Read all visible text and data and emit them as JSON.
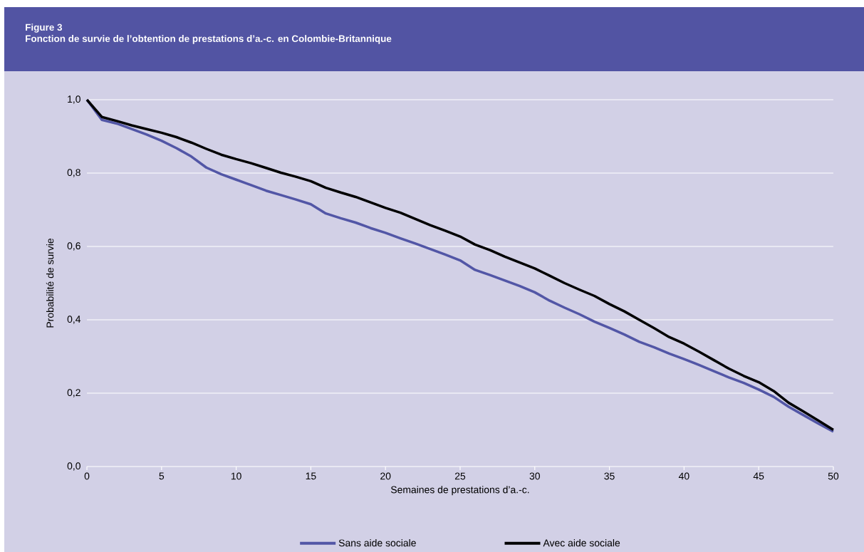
{
  "chart_data": {
    "type": "line",
    "title": "Figure 3",
    "subtitle": "Fonction de survie de l’obtention de prestations d’a.-c. en Colombie-Britannique",
    "xlabel": "Semaines de prestations d’a.-c.",
    "ylabel": "Probabilité de survie",
    "x": [
      0,
      1,
      2,
      3,
      4,
      5,
      6,
      7,
      8,
      9,
      10,
      11,
      12,
      13,
      14,
      15,
      16,
      17,
      18,
      19,
      20,
      21,
      22,
      23,
      24,
      25,
      26,
      27,
      28,
      29,
      30,
      31,
      32,
      33,
      34,
      35,
      36,
      37,
      38,
      39,
      40,
      41,
      42,
      43,
      44,
      45,
      46,
      47,
      48,
      49,
      50
    ],
    "series": [
      {
        "name": "Sans aide sociale",
        "color": "#5256a6",
        "values": [
          1.0,
          0.945,
          0.935,
          0.92,
          0.905,
          0.888,
          0.868,
          0.845,
          0.815,
          0.797,
          0.782,
          0.767,
          0.752,
          0.74,
          0.728,
          0.715,
          0.69,
          0.677,
          0.665,
          0.65,
          0.637,
          0.622,
          0.608,
          0.593,
          0.578,
          0.562,
          0.536,
          0.522,
          0.507,
          0.492,
          0.475,
          0.452,
          0.433,
          0.415,
          0.395,
          0.378,
          0.36,
          0.34,
          0.325,
          0.308,
          0.293,
          0.277,
          0.26,
          0.243,
          0.228,
          0.21,
          0.19,
          0.163,
          0.14,
          0.117,
          0.095
        ]
      },
      {
        "name": "Avec aide sociale",
        "color": "#000000",
        "values": [
          1.0,
          0.953,
          0.942,
          0.93,
          0.92,
          0.91,
          0.898,
          0.883,
          0.866,
          0.85,
          0.838,
          0.827,
          0.814,
          0.801,
          0.79,
          0.778,
          0.76,
          0.747,
          0.735,
          0.72,
          0.705,
          0.692,
          0.675,
          0.658,
          0.643,
          0.627,
          0.605,
          0.59,
          0.572,
          0.556,
          0.54,
          0.52,
          0.5,
          0.482,
          0.465,
          0.443,
          0.423,
          0.4,
          0.377,
          0.353,
          0.335,
          0.313,
          0.29,
          0.267,
          0.247,
          0.23,
          0.206,
          0.174,
          0.15,
          0.125,
          0.1
        ]
      }
    ],
    "xlim": [
      0,
      50
    ],
    "xticks": [
      0,
      5,
      10,
      15,
      20,
      25,
      30,
      35,
      40,
      45,
      50
    ],
    "ylim": [
      0,
      1
    ],
    "yticks": [
      {
        "value": 0,
        "label": "0,0"
      },
      {
        "value": 0.2,
        "label": "0,2"
      },
      {
        "value": 0.4,
        "label": "0,4"
      },
      {
        "value": 0.6,
        "label": "0,6"
      },
      {
        "value": 0.8,
        "label": "0,8"
      },
      {
        "value": 1.0,
        "label": "1,0"
      }
    ],
    "grid": "y",
    "legend": "bottom",
    "line_style": "solid",
    "marker": "none"
  }
}
